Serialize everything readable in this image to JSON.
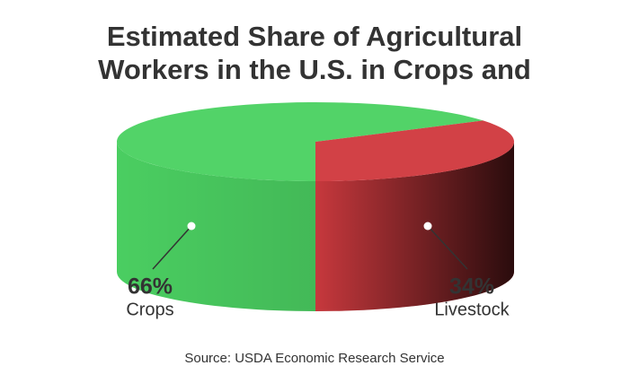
{
  "chart_data": {
    "type": "pie3d",
    "title": "Estimated Share of Agricultural Workers in the U.S. in Crops and",
    "categories": [
      "Crops",
      "Livestock"
    ],
    "values": [
      66,
      34
    ],
    "value_labels": [
      "66%",
      "34%"
    ],
    "colors": [
      "#4cd263",
      "#d13b40"
    ],
    "source": "Source: USDA Economic Research Service"
  }
}
